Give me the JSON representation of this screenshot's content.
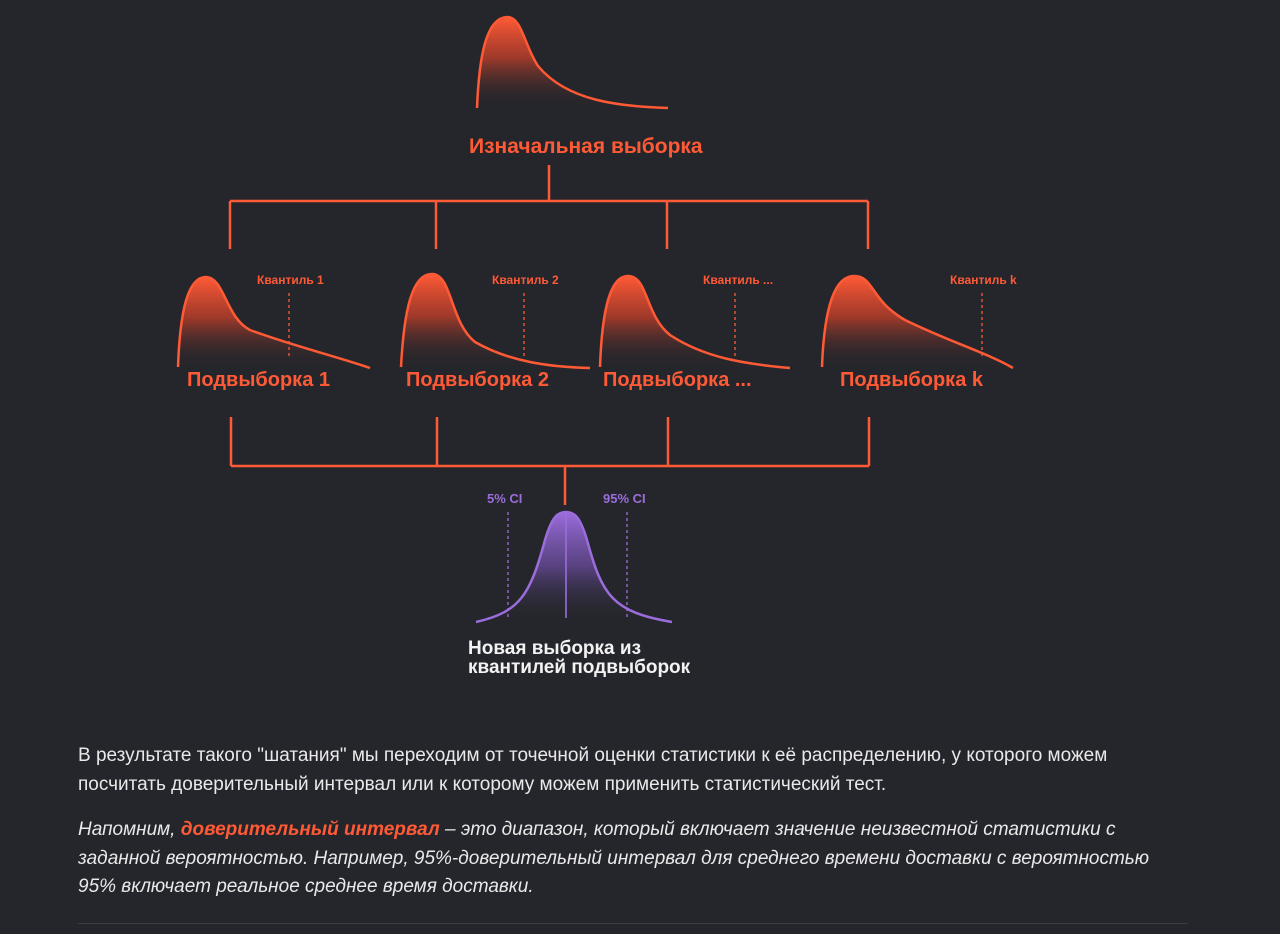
{
  "diagram": {
    "root_label": "Изначальная выборка",
    "subsamples": [
      {
        "label": "Подвыборка 1",
        "quantile_label": "Квантиль 1"
      },
      {
        "label": "Подвыборка 2",
        "quantile_label": "Квантиль 2"
      },
      {
        "label": "Подвыборка ...",
        "quantile_label": "Квантиль ..."
      },
      {
        "label": "Подвыборка k",
        "quantile_label": "Квантиль k"
      }
    ],
    "result_label_line1": "Новая выборка из",
    "result_label_line2": "квантилей подвыборок",
    "ci_low_label": "5% CI",
    "ci_high_label": "95% CI",
    "colors": {
      "accent": "#ff5a36",
      "purple": "#9b6ddc",
      "background": "#25262b"
    }
  },
  "article": {
    "paragraph1": "В результате такого \"шатания\" мы переходим от точечной оценки статистики к её распределению, у которого можем посчитать доверительный интервал или к которому можем применить статистический тест.",
    "paragraph2_prefix": "Напомним, ",
    "paragraph2_term": "доверительный интервал",
    "paragraph2_suffix": " – это диапазон, который включает значение неизвестной статистики с заданной вероятностью. Например, 95%-доверительный интервал для среднего времени доставки с вероятностью 95% включает реальное среднее время доставки."
  }
}
